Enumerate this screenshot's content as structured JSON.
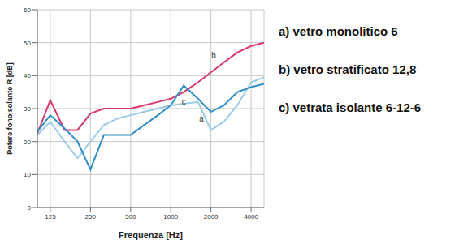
{
  "chart_data": {
    "type": "line",
    "x_label": "Frequenza [Hz]",
    "y_label": "Potere fonoisolante R [dB]",
    "x": [
      100,
      125,
      160,
      200,
      250,
      315,
      400,
      500,
      630,
      800,
      1000,
      1250,
      1600,
      2000,
      2500,
      3150,
      4000,
      5000
    ],
    "series": [
      {
        "name": "a) vetro monolitico 6",
        "color": "#9ccbe8",
        "values": [
          22,
          26,
          20,
          15,
          20,
          25,
          27,
          28,
          29,
          30,
          31,
          31.5,
          32,
          23.5,
          26,
          31,
          38,
          39.5
        ]
      },
      {
        "name": "b) vetro stratificato 12,8",
        "color": "#d8386a",
        "values": [
          22.5,
          32.5,
          23.5,
          23.5,
          28.5,
          30,
          30,
          30,
          31,
          32,
          33,
          35,
          38,
          41,
          44,
          47,
          49,
          50
        ]
      },
      {
        "name": "c) vetrata isolante 6-12-6",
        "color": "#2f8fc6",
        "values": [
          23,
          28,
          24,
          20,
          11.5,
          22,
          22,
          22,
          25,
          28,
          31,
          37,
          33,
          29,
          31,
          35,
          36.5,
          37.5
        ]
      }
    ],
    "annotations": [
      {
        "text": "a",
        "x": 1700,
        "y": 27
      },
      {
        "text": "b",
        "x": 2100,
        "y": 46
      },
      {
        "text": "c",
        "x": 1250,
        "y": 32
      }
    ],
    "xlim": [
      100,
      5000
    ],
    "xticks": [
      125,
      250,
      500,
      1000,
      2000,
      4000
    ],
    "ylim": [
      0,
      60
    ],
    "yticks": [
      0,
      10,
      20,
      30,
      40,
      50,
      60
    ],
    "log": "x",
    "grid": true,
    "legend": "right"
  }
}
